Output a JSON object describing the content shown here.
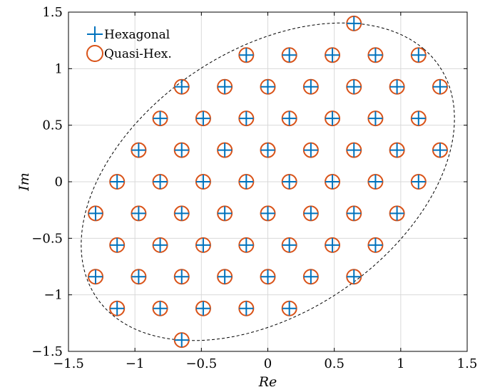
{
  "chart_data": {
    "type": "scatter",
    "xlabel": "Re",
    "ylabel": "Im",
    "xlim": [
      -1.5,
      1.5
    ],
    "ylim": [
      -1.5,
      1.5
    ],
    "xticks": [
      -1.5,
      -1,
      -0.5,
      0,
      0.5,
      1,
      1.5
    ],
    "yticks": [
      -1.5,
      -1,
      -0.5,
      0,
      0.5,
      1,
      1.5
    ],
    "xtick_labels": [
      "−1.5",
      "−1",
      "−0.5",
      "0",
      "0.5",
      "1",
      "1.5"
    ],
    "ytick_labels": [
      "−1.5",
      "−1",
      "−0.5",
      "0",
      "0.5",
      "1",
      "1.5"
    ],
    "grid": true,
    "legend_position": "top-left",
    "points": [
      [
        0.648,
        1.4
      ],
      [
        -0.162,
        1.12
      ],
      [
        0.162,
        1.12
      ],
      [
        0.486,
        1.12
      ],
      [
        0.81,
        1.12
      ],
      [
        1.134,
        1.12
      ],
      [
        -0.648,
        0.84
      ],
      [
        -0.324,
        0.84
      ],
      [
        0.0,
        0.84
      ],
      [
        0.324,
        0.84
      ],
      [
        0.648,
        0.84
      ],
      [
        0.972,
        0.84
      ],
      [
        1.296,
        0.84
      ],
      [
        -0.81,
        0.56
      ],
      [
        -0.486,
        0.56
      ],
      [
        -0.162,
        0.56
      ],
      [
        0.162,
        0.56
      ],
      [
        0.486,
        0.56
      ],
      [
        0.81,
        0.56
      ],
      [
        1.134,
        0.56
      ],
      [
        -0.972,
        0.28
      ],
      [
        -0.648,
        0.28
      ],
      [
        -0.324,
        0.28
      ],
      [
        0.0,
        0.28
      ],
      [
        0.324,
        0.28
      ],
      [
        0.648,
        0.28
      ],
      [
        0.972,
        0.28
      ],
      [
        1.296,
        0.28
      ],
      [
        -1.134,
        0.0
      ],
      [
        -0.81,
        0.0
      ],
      [
        -0.486,
        0.0
      ],
      [
        -0.162,
        0.0
      ],
      [
        0.162,
        0.0
      ],
      [
        0.486,
        0.0
      ],
      [
        0.81,
        0.0
      ],
      [
        1.134,
        0.0
      ],
      [
        -1.296,
        -0.28
      ],
      [
        -0.972,
        -0.28
      ],
      [
        -0.648,
        -0.28
      ],
      [
        -0.324,
        -0.28
      ],
      [
        0.0,
        -0.28
      ],
      [
        0.324,
        -0.28
      ],
      [
        0.648,
        -0.28
      ],
      [
        0.972,
        -0.28
      ],
      [
        -1.134,
        -0.56
      ],
      [
        -0.81,
        -0.56
      ],
      [
        -0.486,
        -0.56
      ],
      [
        -0.162,
        -0.56
      ],
      [
        0.162,
        -0.56
      ],
      [
        0.486,
        -0.56
      ],
      [
        0.81,
        -0.56
      ],
      [
        -1.296,
        -0.84
      ],
      [
        -0.972,
        -0.84
      ],
      [
        -0.648,
        -0.84
      ],
      [
        -0.324,
        -0.84
      ],
      [
        0.0,
        -0.84
      ],
      [
        0.324,
        -0.84
      ],
      [
        0.648,
        -0.84
      ],
      [
        -1.134,
        -1.12
      ],
      [
        -0.81,
        -1.12
      ],
      [
        -0.486,
        -1.12
      ],
      [
        -0.162,
        -1.12
      ],
      [
        0.162,
        -1.12
      ],
      [
        -0.648,
        -1.4
      ]
    ],
    "series": [
      {
        "name": "Hexagonal",
        "marker": "plus",
        "color": "#0072bd"
      },
      {
        "name": "Quasi-Hex.",
        "marker": "circle",
        "color": "#d95319"
      }
    ],
    "boundary_ellipse": {
      "center": [
        0.0,
        0.0
      ],
      "semi_axes": [
        1.66,
        1.09
      ],
      "rotation_deg": 45,
      "style": "dashed",
      "color": "#000000"
    }
  }
}
